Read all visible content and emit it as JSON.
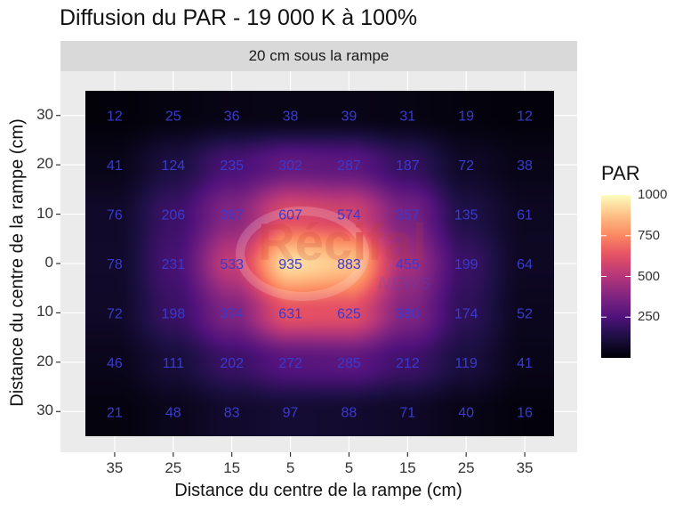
{
  "chart_data": {
    "type": "heatmap",
    "title": "Diffusion du PAR - 19 000 K à 100%",
    "facet_label": "20 cm sous la rampe",
    "xlabel": "Distance du centre de la rampe (cm)",
    "ylabel": "Distance du centre de la rampe (cm)",
    "x_tick_labels": [
      "35",
      "25",
      "15",
      "5",
      "5",
      "15",
      "25",
      "35"
    ],
    "y_tick_labels": [
      "30",
      "20",
      "10",
      "0",
      "10",
      "20",
      "30"
    ],
    "values": [
      [
        12,
        25,
        36,
        38,
        39,
        31,
        19,
        12
      ],
      [
        41,
        124,
        235,
        302,
        287,
        187,
        72,
        38
      ],
      [
        76,
        206,
        387,
        607,
        574,
        357,
        135,
        61
      ],
      [
        78,
        231,
        533,
        935,
        883,
        455,
        199,
        64
      ],
      [
        72,
        198,
        374,
        631,
        625,
        380,
        174,
        52
      ],
      [
        46,
        111,
        202,
        272,
        285,
        212,
        119,
        41
      ],
      [
        21,
        48,
        83,
        97,
        88,
        71,
        40,
        16
      ]
    ],
    "legend": {
      "title": "PAR",
      "ticks": [
        "1000",
        "750",
        "500",
        "250"
      ],
      "range": [
        0,
        1000
      ],
      "colormap": "magma"
    },
    "grid": true,
    "label_color": "#3a3acf",
    "panel_background": "#ebebeb"
  },
  "watermark": "Récifal NEWS"
}
